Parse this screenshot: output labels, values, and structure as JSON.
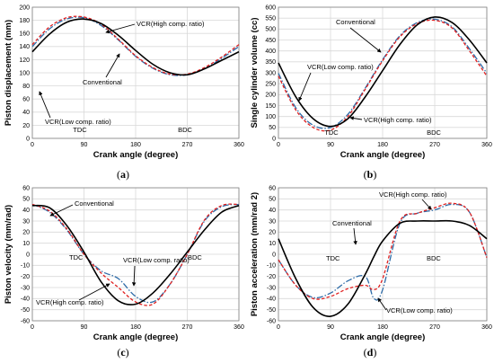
{
  "colors": {
    "conventional": "#000000",
    "vcr_low": "#2e6ca8",
    "vcr_high": "#e02020",
    "grid": "#d9d9d9",
    "frame": "#808080"
  },
  "chart_data": [
    {
      "id": "a",
      "type": "line",
      "panel_label": "a",
      "xlabel": "Crank angle (degree)",
      "ylabel": "Piston displacement (mm)",
      "xlim": [
        0,
        360
      ],
      "ylim": [
        0,
        200
      ],
      "xticks": [
        0,
        90,
        180,
        270,
        360
      ],
      "yticks": [
        0,
        20,
        40,
        60,
        80,
        100,
        120,
        140,
        160,
        180,
        200
      ],
      "grid": true,
      "annotations": [
        "VCR(High comp. ratio)",
        "Conventional",
        "VCR(Low comp. ratio)",
        "TDC",
        "BDC"
      ],
      "x": [
        0,
        30,
        60,
        90,
        120,
        150,
        180,
        210,
        240,
        270,
        300,
        330,
        360
      ],
      "series": [
        {
          "name": "Conventional",
          "style": "solid",
          "values": [
            132,
            159,
            177,
            182,
            175,
            157,
            134,
            113,
            100,
            97,
            106,
            119,
            132
          ]
        },
        {
          "name": "VCR(Low comp. ratio)",
          "style": "dashdot",
          "values": [
            140,
            167,
            182,
            184,
            172,
            150,
            125,
            107,
            97,
            97,
            106,
            122,
            140
          ]
        },
        {
          "name": "VCR(High comp. ratio)",
          "style": "dashed",
          "values": [
            143,
            170,
            184,
            185,
            174,
            151,
            126,
            108,
            98,
            98,
            108,
            124,
            143
          ]
        }
      ]
    },
    {
      "id": "b",
      "type": "line",
      "panel_label": "b",
      "xlabel": "Crank angle (degree)",
      "ylabel": "Single cylinder volume (cc)",
      "xlim": [
        0,
        360
      ],
      "ylim": [
        0,
        600
      ],
      "xticks": [
        0,
        90,
        180,
        270,
        360
      ],
      "yticks": [
        0,
        50,
        100,
        150,
        200,
        250,
        300,
        350,
        400,
        450,
        500,
        550,
        600
      ],
      "grid": true,
      "annotations": [
        "Conventional",
        "VCR(Low comp. ratio)",
        "VCR(High comp. ratio)",
        "TDC",
        "BDC"
      ],
      "x": [
        0,
        30,
        60,
        90,
        120,
        150,
        180,
        210,
        240,
        270,
        300,
        330,
        360
      ],
      "series": [
        {
          "name": "Conventional",
          "style": "solid",
          "values": [
            345,
            190,
            90,
            55,
            90,
            190,
            310,
            430,
            520,
            555,
            530,
            450,
            345
          ]
        },
        {
          "name": "VCR(Low comp. ratio)",
          "style": "dashdot",
          "values": [
            298,
            140,
            60,
            50,
            110,
            230,
            360,
            470,
            530,
            545,
            510,
            410,
            298
          ]
        },
        {
          "name": "VCR(High comp. ratio)",
          "style": "dashed",
          "values": [
            285,
            130,
            50,
            38,
            100,
            225,
            355,
            465,
            525,
            540,
            505,
            400,
            285
          ]
        }
      ]
    },
    {
      "id": "c",
      "type": "line",
      "panel_label": "c",
      "xlabel": "Crank angle (degree)",
      "ylabel": "Piston velocity (mm/rad)",
      "xlim": [
        0,
        360
      ],
      "ylim": [
        -60,
        60
      ],
      "xticks": [
        0,
        90,
        180,
        270,
        360
      ],
      "yticks": [
        -60,
        -50,
        -40,
        -30,
        -20,
        -10,
        0,
        10,
        20,
        30,
        40,
        50,
        60
      ],
      "grid": true,
      "annotations": [
        "Conventional",
        "TDC",
        "VCR(Low comp. ratio)",
        "BDC",
        "VCR(High comp. ratio)"
      ],
      "x": [
        0,
        30,
        60,
        90,
        120,
        150,
        180,
        210,
        240,
        270,
        300,
        330,
        360
      ],
      "series": [
        {
          "name": "Conventional",
          "style": "solid",
          "values": [
            44,
            42,
            26,
            2,
            -25,
            -42,
            -45,
            -35,
            -18,
            2,
            22,
            38,
            44
          ]
        },
        {
          "name": "VCR(Low comp. ratio)",
          "style": "dashdot",
          "values": [
            45,
            38,
            22,
            0,
            -15,
            -22,
            -38,
            -43,
            -27,
            0,
            30,
            43,
            45
          ]
        },
        {
          "name": "VCR(High comp. ratio)",
          "style": "dashed",
          "values": [
            45,
            39,
            23,
            0,
            -17,
            -30,
            -43,
            -45,
            -27,
            0,
            31,
            44,
            45
          ]
        }
      ]
    },
    {
      "id": "d",
      "type": "line",
      "panel_label": "d",
      "xlabel": "Crank angle (degree)",
      "ylabel": "Piston acceleration (mm/rad 2)",
      "xlim": [
        0,
        360
      ],
      "ylim": [
        -60,
        60
      ],
      "xticks": [
        0,
        90,
        180,
        270,
        360
      ],
      "yticks": [
        -60,
        -50,
        -40,
        -30,
        -20,
        -10,
        0,
        10,
        20,
        30,
        40,
        50,
        60
      ],
      "grid": true,
      "annotations": [
        "VCR(High comp. ratio)",
        "Conventional",
        "TDC",
        "BDC",
        "VCR(Low comp. ratio)"
      ],
      "x": [
        0,
        30,
        60,
        90,
        120,
        150,
        165,
        180,
        210,
        240,
        270,
        300,
        330,
        360
      ],
      "series": [
        {
          "name": "Conventional",
          "style": "solid",
          "values": [
            14,
            -22,
            -48,
            -56,
            -45,
            -18,
            -2,
            12,
            28,
            30,
            30,
            30,
            26,
            14
          ]
        },
        {
          "name": "VCR(Low comp. ratio)",
          "style": "dashdot",
          "values": [
            -5,
            -28,
            -39,
            -35,
            -24,
            -20,
            -40,
            -32,
            28,
            37,
            40,
            45,
            38,
            -3
          ]
        },
        {
          "name": "VCR(High comp. ratio)",
          "style": "dashed",
          "values": [
            -5,
            -28,
            -40,
            -38,
            -31,
            -28,
            -32,
            -22,
            30,
            37,
            42,
            46,
            38,
            -3
          ]
        }
      ]
    }
  ]
}
